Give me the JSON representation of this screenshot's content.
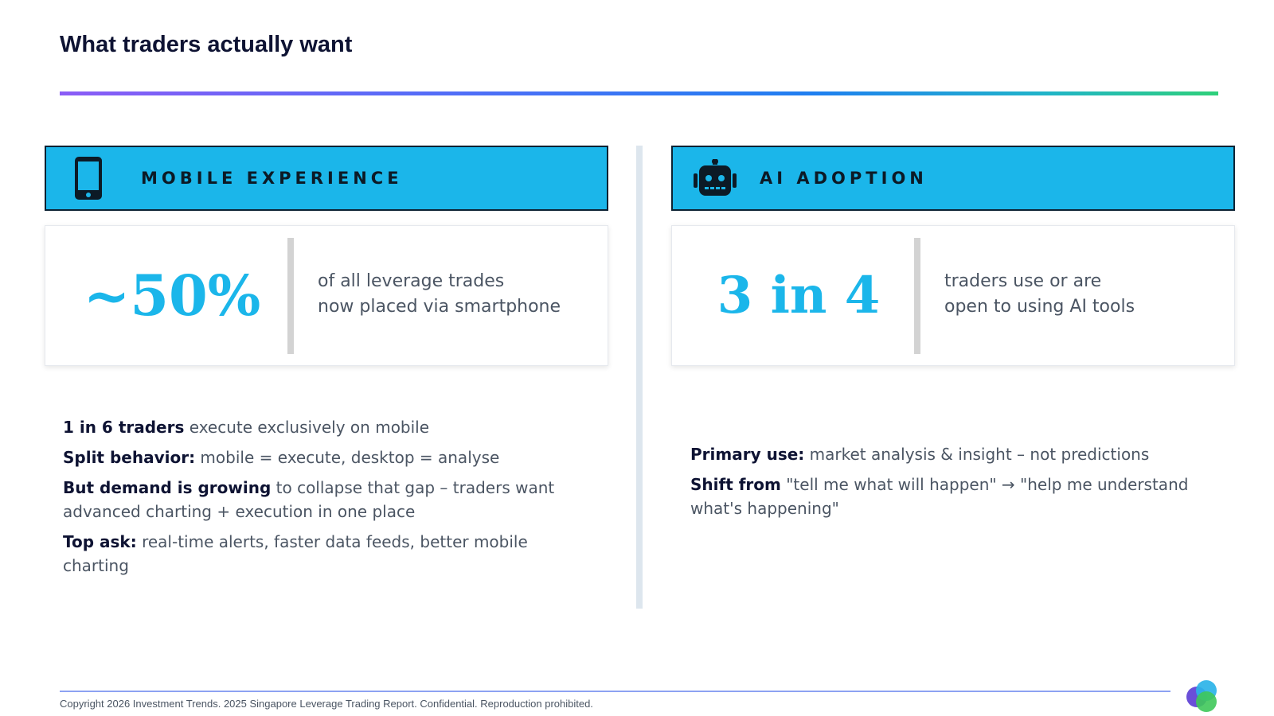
{
  "page": {
    "title": "What traders actually want"
  },
  "left": {
    "header": {
      "icon": "smartphone-icon",
      "title": "MOBILE EXPERIENCE"
    },
    "stat": {
      "value": "~50%",
      "line1": "of all leverage trades",
      "line2": "now placed via smartphone"
    },
    "bullets": [
      {
        "bold": "1 in 6 traders",
        "text": " execute exclusively on mobile"
      },
      {
        "bold": "Split behavior:",
        "text": " mobile = execute, desktop = analyse"
      },
      {
        "bold": "But demand is growing",
        "text": " to collapse that gap – traders want advanced charting + execution in one place"
      },
      {
        "bold": "Top ask:",
        "text": " real-time alerts, faster data feeds, better mobile charting"
      }
    ]
  },
  "right": {
    "header": {
      "icon": "robot-icon",
      "title": "AI ADOPTION"
    },
    "stat": {
      "value": "3 in 4",
      "line1": "traders use or are",
      "line2": "open to using AI tools"
    },
    "bullets": [
      {
        "bold": "Primary use:",
        "text": " market analysis & insight – not predictions"
      },
      {
        "bold": "Shift from",
        "text": " \"tell me what will happen\" → \"help me understand what's happening\""
      }
    ]
  },
  "footer": {
    "copyright": "Copyright 2026 Investment Trends. 2025 Singapore Leverage Trading Report. Confidential. Reproduction prohibited.",
    "logo_icon": "investment-trends-logo"
  },
  "colors": {
    "accent": "#1bb6ea",
    "title": "#0e1333",
    "body_text": "#4b5563"
  }
}
